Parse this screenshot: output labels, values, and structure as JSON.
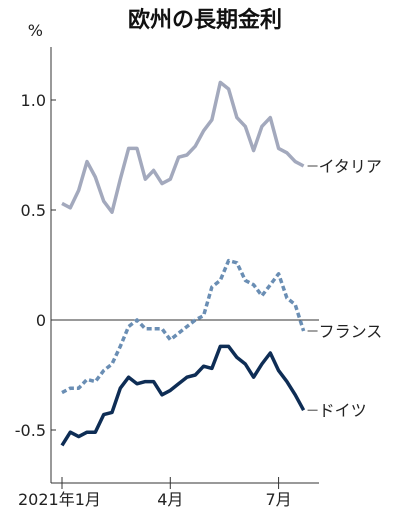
{
  "chart_data": {
    "type": "line",
    "title": "欧州の長期金利",
    "unit": "%",
    "ylim": [
      -0.72,
      1.25
    ],
    "yticks": [
      {
        "value": 1.0,
        "label": "1.0"
      },
      {
        "value": 0.5,
        "label": "0.5"
      },
      {
        "value": 0,
        "label": "0"
      },
      {
        "value": -0.5,
        "label": "-0.5"
      }
    ],
    "xticks": [
      {
        "week": 0,
        "label": "2021年1月"
      },
      {
        "week": 13,
        "label": "4月"
      },
      {
        "week": 26,
        "label": "7月"
      }
    ],
    "grid": false,
    "series": [
      {
        "name": "イタリア",
        "color": "#a3a9bd",
        "style": "solid",
        "x": [
          0,
          1,
          2,
          3,
          4,
          5,
          6,
          7,
          8,
          9,
          10,
          11,
          12,
          13,
          14,
          15,
          16,
          17,
          18,
          19,
          20,
          21,
          22,
          23,
          24,
          25,
          26,
          27,
          28,
          29
        ],
        "values": [
          0.53,
          0.51,
          0.59,
          0.72,
          0.65,
          0.54,
          0.49,
          0.64,
          0.78,
          0.78,
          0.64,
          0.68,
          0.62,
          0.64,
          0.74,
          0.75,
          0.79,
          0.86,
          0.91,
          1.08,
          1.05,
          0.92,
          0.88,
          0.77,
          0.88,
          0.92,
          0.78,
          0.76,
          0.72,
          0.7
        ]
      },
      {
        "name": "フランス",
        "color": "#6a8eb4",
        "style": "dashed",
        "x": [
          0,
          1,
          2,
          3,
          4,
          5,
          6,
          7,
          8,
          9,
          10,
          11,
          12,
          13,
          14,
          15,
          16,
          17,
          18,
          19,
          20,
          21,
          22,
          23,
          24,
          25,
          26,
          27,
          28,
          29
        ],
        "values": [
          -0.33,
          -0.31,
          -0.31,
          -0.27,
          -0.28,
          -0.23,
          -0.2,
          -0.12,
          -0.03,
          0.0,
          -0.04,
          -0.04,
          -0.04,
          -0.09,
          -0.06,
          -0.03,
          0.0,
          0.02,
          0.15,
          0.18,
          0.27,
          0.26,
          0.18,
          0.16,
          0.11,
          0.16,
          0.21,
          0.1,
          0.07,
          -0.05
        ]
      },
      {
        "name": "ドイツ",
        "color": "#0e2d55",
        "style": "solid",
        "x": [
          0,
          1,
          2,
          3,
          4,
          5,
          6,
          7,
          8,
          9,
          10,
          11,
          12,
          13,
          14,
          15,
          16,
          17,
          18,
          19,
          20,
          21,
          22,
          23,
          24,
          25,
          26,
          27,
          28,
          29
        ],
        "values": [
          -0.57,
          -0.51,
          -0.53,
          -0.51,
          -0.51,
          -0.43,
          -0.42,
          -0.31,
          -0.26,
          -0.29,
          -0.28,
          -0.28,
          -0.34,
          -0.32,
          -0.29,
          -0.26,
          -0.25,
          -0.21,
          -0.22,
          -0.12,
          -0.12,
          -0.17,
          -0.2,
          -0.26,
          -0.2,
          -0.15,
          -0.23,
          -0.28,
          -0.34,
          -0.41
        ]
      }
    ]
  }
}
